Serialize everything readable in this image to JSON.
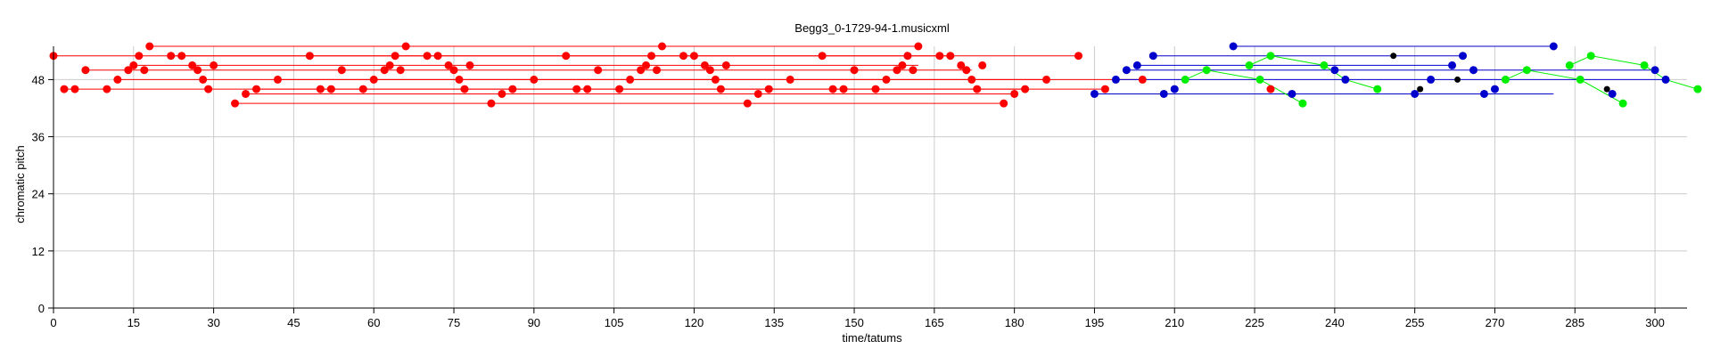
{
  "chart_data": {
    "type": "scatter",
    "title": "Begg3_0-1729-94-1.musicxml",
    "xlabel": "time/tatums",
    "ylabel": "chromatic pitch",
    "xlim": [
      0,
      306
    ],
    "ylim": [
      0,
      55
    ],
    "xticks": [
      0,
      15,
      30,
      45,
      60,
      75,
      90,
      105,
      120,
      135,
      150,
      165,
      180,
      195,
      210,
      225,
      240,
      255,
      270,
      285,
      300
    ],
    "yticks": [
      0,
      12,
      24,
      36,
      48
    ],
    "grid": true,
    "series": [
      {
        "color": "#ff0000",
        "points": [
          [
            0,
            53
          ],
          [
            2,
            46
          ],
          [
            4,
            46
          ],
          [
            6,
            50
          ],
          [
            10,
            46
          ],
          [
            12,
            48
          ],
          [
            14,
            50
          ],
          [
            15,
            51
          ],
          [
            16,
            53
          ],
          [
            17,
            50
          ],
          [
            18,
            55
          ],
          [
            22,
            53
          ],
          [
            24,
            53
          ],
          [
            26,
            51
          ],
          [
            27,
            50
          ],
          [
            28,
            48
          ],
          [
            29,
            46
          ],
          [
            30,
            51
          ],
          [
            34,
            43
          ],
          [
            36,
            45
          ],
          [
            38,
            46
          ],
          [
            42,
            48
          ],
          [
            48,
            53
          ],
          [
            50,
            46
          ],
          [
            52,
            46
          ],
          [
            54,
            50
          ],
          [
            58,
            46
          ],
          [
            60,
            48
          ],
          [
            62,
            50
          ],
          [
            63,
            51
          ],
          [
            64,
            53
          ],
          [
            65,
            50
          ],
          [
            66,
            55
          ],
          [
            70,
            53
          ],
          [
            72,
            53
          ],
          [
            74,
            51
          ],
          [
            75,
            50
          ],
          [
            76,
            48
          ],
          [
            77,
            46
          ],
          [
            78,
            51
          ],
          [
            82,
            43
          ],
          [
            84,
            45
          ],
          [
            86,
            46
          ],
          [
            90,
            48
          ],
          [
            96,
            53
          ],
          [
            98,
            46
          ],
          [
            100,
            46
          ],
          [
            102,
            50
          ],
          [
            106,
            46
          ],
          [
            108,
            48
          ],
          [
            110,
            50
          ],
          [
            111,
            51
          ],
          [
            112,
            53
          ],
          [
            113,
            50
          ],
          [
            114,
            55
          ],
          [
            118,
            53
          ],
          [
            120,
            53
          ],
          [
            122,
            51
          ],
          [
            123,
            50
          ],
          [
            124,
            48
          ],
          [
            125,
            46
          ],
          [
            126,
            51
          ],
          [
            130,
            43
          ],
          [
            132,
            45
          ],
          [
            134,
            46
          ],
          [
            138,
            48
          ],
          [
            144,
            53
          ],
          [
            146,
            46
          ],
          [
            148,
            46
          ],
          [
            150,
            50
          ],
          [
            154,
            46
          ],
          [
            156,
            48
          ],
          [
            158,
            50
          ],
          [
            159,
            51
          ],
          [
            160,
            53
          ],
          [
            161,
            50
          ],
          [
            162,
            55
          ],
          [
            166,
            53
          ],
          [
            168,
            53
          ],
          [
            170,
            51
          ],
          [
            171,
            50
          ],
          [
            172,
            48
          ],
          [
            173,
            46
          ],
          [
            174,
            51
          ],
          [
            178,
            43
          ],
          [
            180,
            45
          ],
          [
            182,
            46
          ],
          [
            186,
            48
          ],
          [
            192,
            53
          ],
          [
            197,
            46
          ],
          [
            204,
            48
          ],
          [
            228,
            46
          ]
        ],
        "spans": [
          [
            0,
            192,
            53
          ],
          [
            2,
            197,
            46
          ],
          [
            6,
            172,
            50
          ],
          [
            12,
            204,
            48
          ],
          [
            15,
            162,
            51
          ],
          [
            18,
            162,
            55
          ],
          [
            34,
            178,
            43
          ],
          [
            36,
            180,
            45
          ],
          [
            38,
            182,
            46
          ],
          [
            22,
            168,
            53
          ],
          [
            42,
            186,
            48
          ]
        ]
      },
      {
        "color": "#0000cc",
        "points": [
          [
            195,
            45
          ],
          [
            199,
            48
          ],
          [
            201,
            50
          ],
          [
            203,
            51
          ],
          [
            206,
            53
          ],
          [
            208,
            45
          ],
          [
            210,
            46
          ],
          [
            221,
            55
          ],
          [
            232,
            45
          ],
          [
            240,
            50
          ],
          [
            242,
            48
          ],
          [
            255,
            45
          ],
          [
            258,
            48
          ],
          [
            262,
            51
          ],
          [
            264,
            53
          ],
          [
            266,
            50
          ],
          [
            268,
            45
          ],
          [
            270,
            46
          ],
          [
            281,
            55
          ],
          [
            292,
            45
          ],
          [
            300,
            50
          ],
          [
            302,
            48
          ]
        ],
        "spans": [
          [
            195,
            281,
            45
          ],
          [
            199,
            302,
            48
          ],
          [
            201,
            300,
            50
          ],
          [
            203,
            262,
            51
          ],
          [
            206,
            264,
            53
          ],
          [
            221,
            281,
            55
          ],
          [
            208,
            268,
            45
          ]
        ]
      },
      {
        "color": "#00ee00",
        "points": [
          [
            212,
            48
          ],
          [
            216,
            50
          ],
          [
            224,
            51
          ],
          [
            228,
            53
          ],
          [
            226,
            48
          ],
          [
            234,
            43
          ],
          [
            238,
            51
          ],
          [
            248,
            46
          ],
          [
            272,
            48
          ],
          [
            276,
            50
          ],
          [
            284,
            51
          ],
          [
            288,
            53
          ],
          [
            286,
            48
          ],
          [
            294,
            43
          ],
          [
            298,
            51
          ],
          [
            308,
            46
          ]
        ],
        "links": [
          [
            [
              212,
              48
            ],
            [
              216,
              50
            ],
            [
              226,
              48
            ],
            [
              234,
              43
            ]
          ],
          [
            [
              224,
              51
            ],
            [
              228,
              53
            ],
            [
              238,
              51
            ],
            [
              242,
              48
            ],
            [
              248,
              46
            ]
          ],
          [
            [
              272,
              48
            ],
            [
              276,
              50
            ],
            [
              286,
              48
            ],
            [
              294,
              43
            ]
          ],
          [
            [
              284,
              51
            ],
            [
              288,
              53
            ],
            [
              298,
              51
            ],
            [
              302,
              48
            ],
            [
              308,
              46
            ]
          ]
        ]
      },
      {
        "color": "#000000",
        "points": [
          [
            251,
            53
          ],
          [
            256,
            46
          ],
          [
            263,
            48
          ],
          [
            291,
            46
          ]
        ]
      }
    ]
  }
}
